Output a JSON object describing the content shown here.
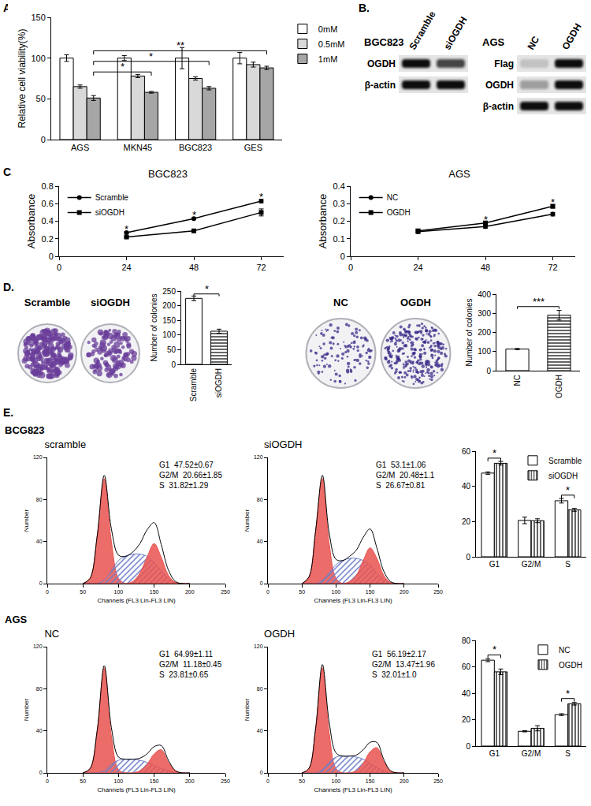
{
  "panel_labels": [
    "A.",
    "B.",
    "C.",
    "D.",
    "E."
  ],
  "flow_groups": [
    "BCG823",
    "AGS"
  ],
  "blots": [
    {
      "title": "BGC823",
      "lanes": [
        "Scramble",
        "siOGDH"
      ],
      "rows": [
        {
          "label": "OGDH",
          "intensity": [
            1,
            0.75
          ]
        },
        {
          "label": "β-actin",
          "intensity": [
            1,
            1
          ]
        }
      ]
    },
    {
      "title": "AGS",
      "lanes": [
        "NC",
        "OGDH"
      ],
      "rows": [
        {
          "label": "Flag",
          "intensity": [
            0.15,
            1
          ]
        },
        {
          "label": "OGDH",
          "intensity": [
            0.35,
            1
          ]
        },
        {
          "label": "β-actin",
          "intensity": [
            1,
            1
          ]
        }
      ]
    }
  ],
  "colony_plates": [
    {
      "labels": [
        "Scramble",
        "siOGDH"
      ]
    },
    {
      "labels": [
        "NC",
        "OGDH"
      ]
    }
  ],
  "chart_data": [
    {
      "type": "bar",
      "y_label": "Relative cell viability(%)",
      "categories": [
        "AGS",
        "MKN45",
        "BGC823",
        "GES"
      ],
      "series": [
        {
          "name": "0mM",
          "color": "#ffffff",
          "values": [
            100,
            100,
            100,
            100
          ],
          "errors": [
            4,
            3,
            13,
            7
          ]
        },
        {
          "name": "0.5mM",
          "color": "#d9d9d9",
          "values": [
            65,
            78,
            75,
            92
          ],
          "errors": [
            2,
            2,
            2,
            3
          ]
        },
        {
          "name": "1mM",
          "color": "#a6a6a6",
          "values": [
            51,
            58,
            63,
            88
          ],
          "errors": [
            3,
            1,
            2,
            2
          ]
        }
      ],
      "ylim": [
        0,
        150
      ],
      "yticks": [
        0,
        50,
        100,
        150
      ],
      "legend": "right",
      "significance": [
        {
          "from": "AGS",
          "to": "MKN45",
          "y": 83,
          "label": "*"
        },
        {
          "from": "AGS",
          "to": "BGC823",
          "y": 96,
          "label": "*"
        },
        {
          "from": "AGS",
          "to": "GES",
          "y": 109,
          "label": "**"
        }
      ]
    },
    {
      "type": "line",
      "title": "BGC823",
      "y_label": "Absorbance",
      "x": [
        24,
        48,
        72
      ],
      "series": [
        {
          "name": "Scramble",
          "color": "#000000",
          "marker": "circle",
          "values": [
            0.27,
            0.43,
            0.63
          ],
          "errors": [
            0.01,
            0.01,
            0.02
          ]
        },
        {
          "name": "siOGDH",
          "color": "#000000",
          "marker": "square",
          "values": [
            0.22,
            0.29,
            0.5
          ],
          "errors": [
            0.01,
            0.01,
            0.04
          ]
        }
      ],
      "xlim": [
        0,
        80
      ],
      "xticks": [
        0,
        24,
        48,
        72
      ],
      "ylim": [
        0,
        0.8
      ],
      "yticks": [
        0,
        0.2,
        0.4,
        0.6,
        0.8
      ],
      "legend": "top left",
      "annotations": [
        {
          "x": 24,
          "y": 0.31,
          "text": "*"
        },
        {
          "x": 48,
          "y": 0.47,
          "text": "*"
        },
        {
          "x": 72,
          "y": 0.68,
          "text": "*"
        }
      ]
    },
    {
      "type": "line",
      "title": "AGS",
      "y_label": "Absorbance",
      "x": [
        24,
        48,
        72
      ],
      "series": [
        {
          "name": "NC",
          "color": "#000000",
          "marker": "circle",
          "values": [
            0.14,
            0.17,
            0.24
          ],
          "errors": [
            0.01,
            0.01,
            0.01
          ]
        },
        {
          "name": "OGDH",
          "color": "#000000",
          "marker": "square",
          "values": [
            0.145,
            0.19,
            0.285
          ],
          "errors": [
            0.01,
            0.01,
            0.01
          ]
        }
      ],
      "xlim": [
        0,
        80
      ],
      "xticks": [
        0,
        24,
        48,
        72
      ],
      "ylim": [
        0,
        0.4
      ],
      "yticks": [
        0,
        0.1,
        0.2,
        0.3,
        0.4
      ],
      "legend": "top left",
      "annotations": [
        {
          "x": 48,
          "y": 0.21,
          "text": "*"
        },
        {
          "x": 72,
          "y": 0.31,
          "text": "*"
        }
      ]
    },
    {
      "type": "bar",
      "y_label": "Number of colonies",
      "categories": [
        "Scramble",
        "siOGDH"
      ],
      "series": [
        {
          "color": "#ffffff",
          "marker": "plain",
          "values": [
            225,
            null
          ],
          "errors": [
            8,
            null
          ]
        },
        {
          "color": "#ffffff",
          "marker": "horizontal-hatch",
          "values": [
            null,
            113
          ],
          "errors": [
            null,
            7
          ]
        }
      ],
      "ylim": [
        0,
        250
      ],
      "yticks": [
        0,
        50,
        100,
        150,
        200,
        250
      ],
      "significance": [
        {
          "from": "Scramble",
          "to": "siOGDH",
          "y": 240,
          "label": "*"
        }
      ]
    },
    {
      "type": "bar",
      "y_label": "Number of colonies",
      "categories": [
        "NC",
        "OGDH"
      ],
      "series": [
        {
          "color": "#ffffff",
          "marker": "plain",
          "values": [
            113,
            null
          ],
          "errors": [
            3,
            null
          ]
        },
        {
          "color": "#ffffff",
          "marker": "horizontal-hatch",
          "values": [
            null,
            290
          ],
          "errors": [
            null,
            25
          ]
        }
      ],
      "ylim": [
        0,
        400
      ],
      "yticks": [
        0,
        100,
        200,
        300,
        400
      ],
      "significance": [
        {
          "from": "NC",
          "to": "OGDH",
          "y": 335,
          "label": "***"
        }
      ]
    },
    {
      "type": "bar",
      "categories": [
        "G1",
        "G2/M",
        "S"
      ],
      "series": [
        {
          "name": "Scramble",
          "color": "#ffffff",
          "marker": "plain",
          "values": [
            47.52,
            20.66,
            31.82
          ],
          "errors": [
            0.67,
            1.85,
            1.29
          ]
        },
        {
          "name": "siOGDH",
          "color": "#ffffff",
          "marker": "vertical-hatch",
          "values": [
            53.1,
            20.48,
            26.67
          ],
          "errors": [
            1.06,
            1.1,
            0.81
          ]
        }
      ],
      "ylim": [
        0,
        60
      ],
      "yticks": [
        0,
        20,
        40,
        60
      ],
      "legend": "top right",
      "significance": [
        {
          "from": "G1",
          "to": "G1",
          "y": 56,
          "label": "*"
        },
        {
          "from": "S",
          "to": "S",
          "y": 35,
          "label": "*"
        }
      ]
    },
    {
      "type": "bar",
      "categories": [
        "G1",
        "G2/M",
        "S"
      ],
      "series": [
        {
          "name": "NC",
          "color": "#ffffff",
          "marker": "plain",
          "values": [
            64.99,
            11.18,
            23.81
          ],
          "errors": [
            1.11,
            0.45,
            0.65
          ]
        },
        {
          "name": "OGDH",
          "color": "#ffffff",
          "marker": "vertical-hatch",
          "values": [
            56.19,
            13.47,
            32.01
          ],
          "errors": [
            2.17,
            1.96,
            1.0
          ]
        }
      ],
      "ylim": [
        0,
        80
      ],
      "yticks": [
        0,
        20,
        40,
        60,
        80
      ],
      "legend": "top right",
      "significance": [
        {
          "from": "G1",
          "to": "G1",
          "y": 69,
          "label": "*"
        },
        {
          "from": "S",
          "to": "S",
          "y": 36,
          "label": "*"
        }
      ]
    },
    {
      "type": "area",
      "title": "scramble",
      "x_label": "Channels (FL3 Lin-FL3 LIN)",
      "y_label": "Number",
      "x": [
        50,
        60,
        70,
        80,
        90,
        100,
        110,
        120,
        130,
        140,
        150,
        160,
        170,
        180,
        190,
        200
      ],
      "series": [
        {
          "name": "G1",
          "color": "#e8524f",
          "values": [
            0,
            5,
            45,
            100,
            40,
            5,
            0,
            0,
            0,
            0,
            0,
            0,
            0,
            0,
            0,
            0
          ]
        },
        {
          "name": "S",
          "color": "#6f7fc8",
          "marker": "hatched",
          "values": [
            0,
            0,
            0,
            3,
            12,
            22,
            26,
            28,
            28,
            26,
            20,
            12,
            5,
            1,
            0,
            0
          ]
        },
        {
          "name": "G2/M",
          "color": "#e8524f",
          "values": [
            0,
            0,
            0,
            0,
            0,
            0,
            0,
            2,
            10,
            25,
            38,
            25,
            8,
            1,
            0,
            0
          ]
        },
        {
          "color": "#000000",
          "line_style": "solid",
          "values": [
            0,
            5,
            45,
            103,
            52,
            27,
            26,
            30,
            38,
            51,
            58,
            37,
            13,
            2,
            0,
            0
          ]
        }
      ],
      "xlim": [
        0,
        250
      ],
      "xticks": [
        0,
        50,
        100,
        150,
        200,
        250
      ],
      "ylim": [
        0,
        120
      ],
      "yticks": [
        0,
        40,
        80,
        120
      ],
      "stats": [
        {
          "label": "G1",
          "text": "47.52±0.67"
        },
        {
          "label": "G2/M",
          "text": "20.66±1.85"
        },
        {
          "label": "S",
          "text": "31.82±1.29"
        }
      ]
    },
    {
      "type": "area",
      "title": "siOGDH",
      "x_label": "Channels (FL3 Lin-FL3 LIN)",
      "y_label": "Number",
      "x": [
        50,
        60,
        70,
        80,
        90,
        100,
        110,
        120,
        130,
        140,
        150,
        160,
        170,
        180,
        190,
        200
      ],
      "series": [
        {
          "name": "G1",
          "color": "#e8524f",
          "values": [
            0,
            6,
            50,
            100,
            38,
            5,
            0,
            0,
            0,
            0,
            0,
            0,
            0,
            0,
            0,
            0
          ]
        },
        {
          "name": "S",
          "color": "#6f7fc8",
          "marker": "hatched",
          "values": [
            0,
            0,
            0,
            3,
            10,
            18,
            22,
            24,
            24,
            22,
            18,
            10,
            4,
            1,
            0,
            0
          ]
        },
        {
          "name": "G2/M",
          "color": "#e8524f",
          "values": [
            0,
            0,
            0,
            0,
            0,
            0,
            0,
            2,
            8,
            22,
            34,
            24,
            8,
            1,
            0,
            0
          ]
        },
        {
          "color": "#000000",
          "line_style": "solid",
          "values": [
            0,
            6,
            50,
            103,
            48,
            23,
            22,
            26,
            32,
            44,
            52,
            34,
            12,
            2,
            0,
            0
          ]
        }
      ],
      "xlim": [
        0,
        250
      ],
      "xticks": [
        0,
        50,
        100,
        150,
        200,
        250
      ],
      "ylim": [
        0,
        120
      ],
      "yticks": [
        0,
        40,
        80,
        120
      ],
      "stats": [
        {
          "label": "G1",
          "text": "53.1±1.06"
        },
        {
          "label": "G2/M",
          "text": "20.48±1.1"
        },
        {
          "label": "S",
          "text": "26.67±0.81"
        }
      ]
    },
    {
      "type": "area",
      "title": "NC",
      "x_label": "Channels (FL3 Lin-FL3 LIN)",
      "y_label": "Number",
      "x": [
        50,
        60,
        70,
        80,
        90,
        100,
        110,
        120,
        130,
        140,
        150,
        160,
        170,
        180,
        190,
        200
      ],
      "series": [
        {
          "name": "G1",
          "color": "#e8524f",
          "values": [
            0,
            4,
            40,
            100,
            35,
            3,
            0,
            0,
            0,
            0,
            0,
            0,
            0,
            0,
            0,
            0
          ]
        },
        {
          "name": "S",
          "color": "#6f7fc8",
          "marker": "hatched",
          "values": [
            0,
            0,
            0,
            2,
            8,
            12,
            13,
            13,
            12,
            10,
            7,
            4,
            2,
            0,
            0,
            0
          ]
        },
        {
          "name": "G2/M",
          "color": "#e8524f",
          "values": [
            0,
            0,
            0,
            0,
            0,
            0,
            0,
            0,
            2,
            8,
            18,
            22,
            10,
            2,
            0,
            0
          ]
        },
        {
          "color": "#000000",
          "line_style": "solid",
          "values": [
            0,
            4,
            40,
            102,
            43,
            15,
            13,
            13,
            14,
            18,
            25,
            26,
            12,
            2,
            0,
            0
          ]
        }
      ],
      "xlim": [
        0,
        250
      ],
      "xticks": [
        0,
        50,
        100,
        150,
        200,
        250
      ],
      "ylim": [
        0,
        120
      ],
      "yticks": [
        0,
        40,
        80,
        120
      ],
      "stats": [
        {
          "label": "G1",
          "text": "64.99±1.11"
        },
        {
          "label": "G2/M",
          "text": "11.18±0.45"
        },
        {
          "label": "S",
          "text": "23.81±0.65"
        }
      ]
    },
    {
      "type": "area",
      "title": "OGDH",
      "x_label": "Channels (FL3 Lin-FL3 LIN)",
      "y_label": "Number",
      "x": [
        50,
        60,
        70,
        80,
        90,
        100,
        110,
        120,
        130,
        140,
        150,
        160,
        170,
        180,
        190,
        200
      ],
      "series": [
        {
          "name": "G1",
          "color": "#e8524f",
          "values": [
            0,
            4,
            42,
            100,
            38,
            4,
            0,
            0,
            0,
            0,
            0,
            0,
            0,
            0,
            0,
            0
          ]
        },
        {
          "name": "S",
          "color": "#6f7fc8",
          "marker": "hatched",
          "values": [
            0,
            0,
            0,
            3,
            10,
            15,
            16,
            16,
            15,
            13,
            9,
            5,
            2,
            0,
            0,
            0
          ]
        },
        {
          "name": "G2/M",
          "color": "#e8524f",
          "values": [
            0,
            0,
            0,
            0,
            0,
            0,
            0,
            0,
            2,
            9,
            20,
            24,
            11,
            2,
            0,
            0
          ]
        },
        {
          "color": "#000000",
          "line_style": "solid",
          "values": [
            0,
            4,
            42,
            103,
            48,
            19,
            16,
            16,
            17,
            22,
            29,
            29,
            13,
            2,
            0,
            0
          ]
        }
      ],
      "xlim": [
        0,
        250
      ],
      "xticks": [
        0,
        50,
        100,
        150,
        200,
        250
      ],
      "ylim": [
        0,
        120
      ],
      "yticks": [
        0,
        40,
        80,
        120
      ],
      "stats": [
        {
          "label": "G1",
          "text": "56.19±2.17"
        },
        {
          "label": "G2/M",
          "text": "13.47±1.96"
        },
        {
          "label": "S",
          "text": "32.01±1.0"
        }
      ]
    }
  ]
}
